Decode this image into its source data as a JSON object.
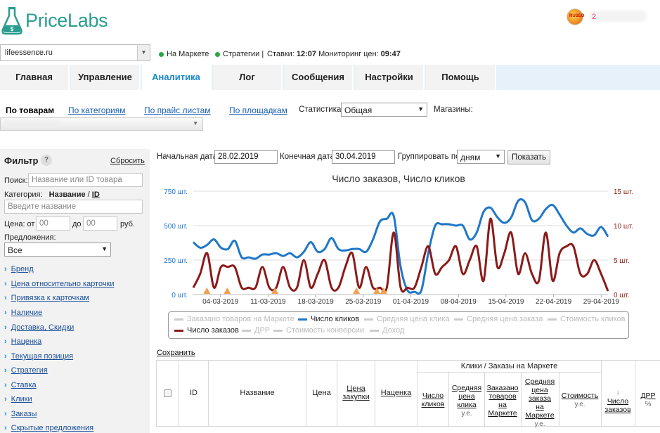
{
  "header": {
    "logo_text": "PriceLabs",
    "site": "lifeessence.ru",
    "status_market": "На Маркете",
    "status_strategies": "Стратегии |",
    "bids_label": "Ставки:",
    "bids_time": "12:07",
    "monitoring_label": "Мониторинг цен:",
    "monitoring_time": "09:47",
    "avatar_text": "RUSEO",
    "user_initial": "2"
  },
  "tabs": [
    {
      "label": "Главная",
      "active": false
    },
    {
      "label": "Управление",
      "active": false
    },
    {
      "label": "Аналитика",
      "active": true
    },
    {
      "label": "Лог",
      "active": false
    },
    {
      "label": "Сообщения",
      "active": false
    },
    {
      "label": "Настройки",
      "active": false
    },
    {
      "label": "Помощь",
      "active": false
    }
  ],
  "subnav": {
    "current": "По товарам",
    "links": [
      "По категориям",
      "По прайс листам",
      "По площадкам"
    ],
    "stat_label": "Статистика:",
    "stat_value": "Общая",
    "shops_label": "Магазины:"
  },
  "filter": {
    "title": "Фильтр",
    "help": "?",
    "reset": "Сбросить",
    "search_label": "Поиск:",
    "search_placeholder": "Название или ID товара",
    "category_label": "Категория:",
    "category_name": "Название",
    "category_sep": "/",
    "category_id": "ID",
    "category_placeholder": "Введите название",
    "price_label": "Цена: от",
    "price_from": "00",
    "price_to_label": "до",
    "price_to": "00",
    "price_unit": "руб.",
    "offers_label": "Предложения:",
    "offers_value": "Все",
    "groups": [
      "Бренд",
      "Цена относительно карточки",
      "Привязка к карточкам",
      "Наличие",
      "Доставка, Скидки",
      "Наценка",
      "Текущая позиция",
      "Стратегия",
      "Ставка",
      "Клики",
      "Заказы",
      "Скрытые предложения"
    ]
  },
  "controls": {
    "start_label": "Начальная дата:",
    "start_value": "28.02.2019",
    "end_label": "Конечная дата:",
    "end_value": "30.04.2019",
    "group_label": "Группировать по:",
    "group_value": "дням",
    "show_button": "Показать"
  },
  "chart_data": {
    "type": "line",
    "title": "Число заказов, Число кликов",
    "x_tick_labels": [
      "04-03-2019",
      "11-03-2019",
      "18-03-2019",
      "25-03-2019",
      "01-04-2019",
      "08-04-2019",
      "15-04-2019",
      "22-04-2019",
      "29-04-2019"
    ],
    "x_start": "2019-02-28",
    "x_end": "2019-04-30",
    "y_left_ticks": [
      "0 шт.",
      "250 шт.",
      "500 шт.",
      "750 шт."
    ],
    "y_left_range": [
      0,
      750
    ],
    "y_right_ticks": [
      "0 шт.",
      "5 шт.",
      "10 шт.",
      "15 шт."
    ],
    "y_right_range": [
      0,
      15
    ],
    "grid": true,
    "series": [
      {
        "name": "Число кликов",
        "axis": "left",
        "color": "#1f77c9",
        "values": [
          380,
          340,
          360,
          400,
          340,
          330,
          390,
          270,
          270,
          260,
          290,
          290,
          300,
          280,
          300,
          270,
          310,
          380,
          310,
          330,
          410,
          330,
          320,
          330,
          330,
          310,
          400,
          530,
          550,
          570,
          200,
          30,
          20,
          30,
          300,
          500,
          510,
          510,
          500,
          500,
          400,
          450,
          600,
          630,
          560,
          520,
          560,
          680,
          670,
          540,
          550,
          620,
          650,
          580,
          500,
          450,
          480,
          440,
          430,
          490,
          420
        ]
      },
      {
        "name": "Число заказов",
        "axis": "right",
        "color": "#8b1a1a",
        "values": [
          1,
          3,
          6,
          1,
          4,
          4,
          4,
          1,
          1,
          1,
          4,
          1,
          1,
          4,
          1,
          1,
          5,
          1,
          3,
          5,
          1,
          1,
          4,
          6,
          1,
          4,
          1,
          1,
          1,
          9,
          1,
          1,
          1,
          4,
          7,
          3,
          4,
          5,
          7,
          3,
          5,
          7,
          2,
          11,
          4,
          6,
          9,
          3,
          6,
          3,
          2,
          9,
          2,
          6,
          7,
          7,
          3,
          3,
          5,
          3,
          0.5
        ]
      }
    ],
    "markers_x": [
      "2019-03-02",
      "2019-03-05",
      "2019-03-12",
      "2019-03-24",
      "2019-03-27",
      "2019-03-28"
    ],
    "legend": [
      {
        "label": "Заказано товаров на Маркете",
        "active": false
      },
      {
        "label": "Число кликов",
        "active": true,
        "color": "#1f77c9"
      },
      {
        "label": "Средняя цена клика",
        "active": false
      },
      {
        "label": "Средняя цена заказа",
        "active": false
      },
      {
        "label": "Стоимость кликов",
        "active": false
      },
      {
        "label": "Число заказов",
        "active": true,
        "color": "#8b1a1a"
      },
      {
        "label": "ДРР",
        "active": false
      },
      {
        "label": "Стоимость конверсии",
        "active": false
      },
      {
        "label": "Доход",
        "active": false
      }
    ]
  },
  "table": {
    "save_link": "Сохранить",
    "group_header": "Клики / Заказы на Маркете",
    "col_id": "ID",
    "col_name": "Название",
    "col_price": "Цена",
    "col_buy_price_1": "Цена",
    "col_buy_price_2": "закупки",
    "col_markup": "Наценка",
    "sub_clicks_1": "Число",
    "sub_clicks_2": "кликов",
    "sub_avg_click_1": "Средняя",
    "sub_avg_click_2": "цена",
    "sub_avg_click_3": "клика",
    "sub_avg_click_unit": "у.е.",
    "sub_ordered_1": "Заказано",
    "sub_ordered_2": "товаров",
    "sub_ordered_3": "на",
    "sub_ordered_4": "Маркете",
    "sub_avg_order_1": "Средняя",
    "sub_avg_order_2": "цена",
    "sub_avg_order_3": "заказа",
    "sub_avg_order_4": "на",
    "sub_avg_order_5": "Маркете",
    "sub_avg_order_unit": "у.е.",
    "sub_cost_1": "Стоимость",
    "sub_cost_unit": "у.е.",
    "sort_arrow": "↓",
    "col_orders_1": "Число",
    "col_orders_2": "заказов",
    "col_drr_1": "ДРР",
    "col_drr_unit": "%"
  }
}
